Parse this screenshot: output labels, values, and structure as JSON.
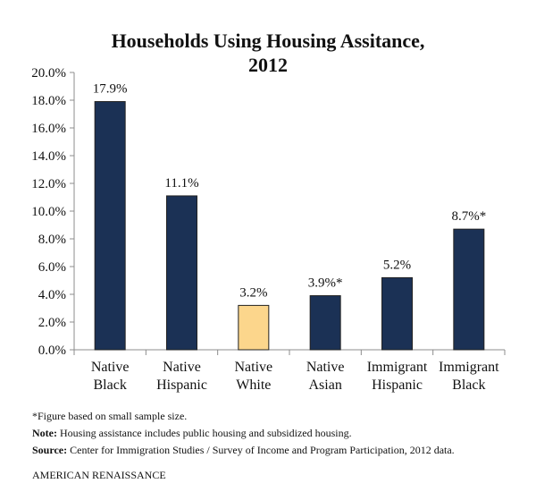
{
  "chart_data": {
    "type": "bar",
    "title_line1": "Households Using Housing Assitance,",
    "title_line2": "2012",
    "categories": [
      [
        "Native",
        "Black"
      ],
      [
        "Native",
        "Hispanic"
      ],
      [
        "Native",
        "White"
      ],
      [
        "Native",
        "Asian"
      ],
      [
        "Immigrant",
        "Hispanic"
      ],
      [
        "Immigrant",
        "Black"
      ]
    ],
    "values": [
      17.9,
      11.1,
      3.2,
      3.9,
      5.2,
      8.7
    ],
    "data_labels": [
      "17.9%",
      "11.1%",
      "3.2%",
      "3.9%*",
      "5.2%",
      "8.7%*"
    ],
    "bar_colors": [
      "#1b3155",
      "#1b3155",
      "#fcd68c",
      "#1b3155",
      "#1b3155",
      "#1b3155"
    ],
    "ylim": [
      0,
      20
    ],
    "y_ticks": [
      "0.0%",
      "2.0%",
      "4.0%",
      "6.0%",
      "8.0%",
      "10.0%",
      "12.0%",
      "14.0%",
      "16.0%",
      "18.0%",
      "20.0%"
    ],
    "xlabel": "",
    "ylabel": "",
    "grid": false,
    "legend": "none"
  },
  "notes": {
    "small_sample": "*Figure based on small sample size.",
    "note_label": "Note:",
    "note_text": " Housing assistance includes public housing and subsidized housing.",
    "source_label": "Source:",
    "source_text": " Center for Immigration Studies / Survey of Income and Program Participation, 2012 data."
  },
  "brand": "AMERICAN RENAISSANCE"
}
